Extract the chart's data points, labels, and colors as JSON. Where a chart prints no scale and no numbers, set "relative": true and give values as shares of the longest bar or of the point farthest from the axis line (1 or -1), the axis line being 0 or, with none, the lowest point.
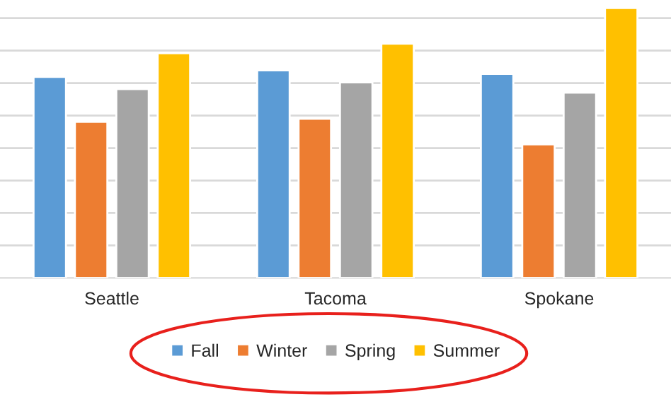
{
  "chart_data": {
    "type": "bar",
    "relative": true,
    "categories": [
      "Seattle",
      "Tacoma",
      "Spokane"
    ],
    "series": [
      {
        "name": "Fall",
        "color": "#5b9bd5",
        "values": [
          0.745,
          0.769,
          0.756
        ]
      },
      {
        "name": "Winter",
        "color": "#ed7d31",
        "values": [
          0.579,
          0.59,
          0.495
        ]
      },
      {
        "name": "Spring",
        "color": "#a5a5a5",
        "values": [
          0.7,
          0.725,
          0.687
        ]
      },
      {
        "name": "Summer",
        "color": "#ffc000",
        "values": [
          0.833,
          0.868,
          1
        ]
      }
    ],
    "grid": "y",
    "legend": "bottom"
  }
}
